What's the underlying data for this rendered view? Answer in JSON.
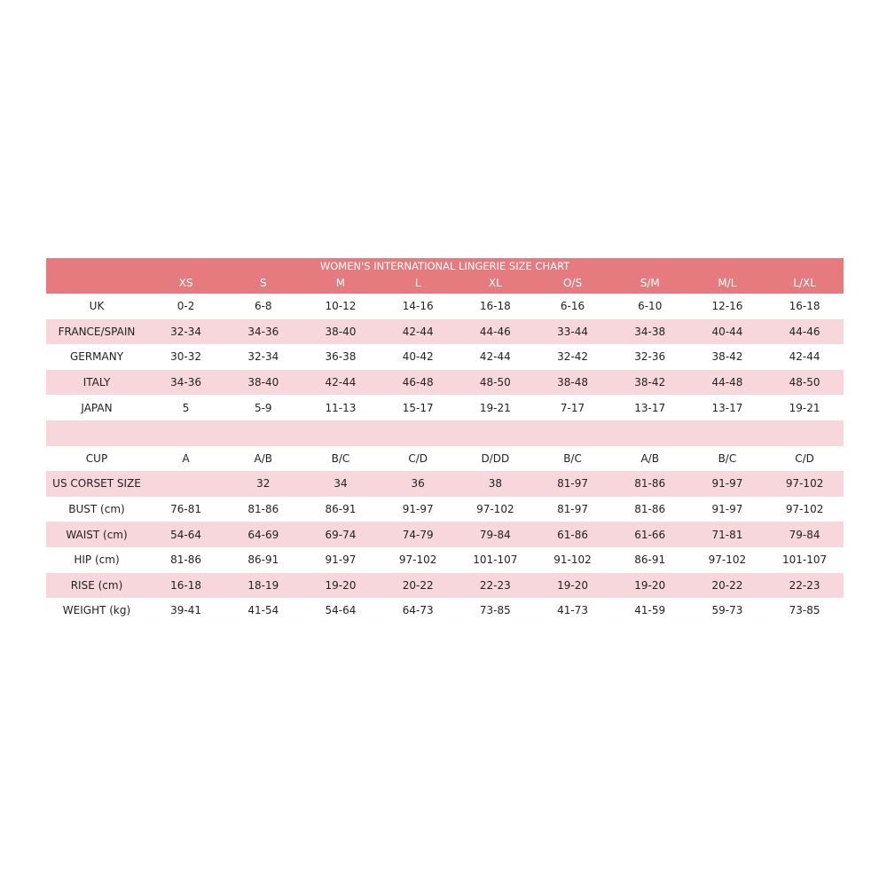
{
  "title": "WOMEN'S INTERNATIONAL LINGERIE SIZE CHART",
  "colors": {
    "header": "#e57b7f",
    "stripe": "#f7d7dc"
  },
  "sizes": [
    "XS",
    "S",
    "M",
    "L",
    "XL",
    "O/S",
    "S/M",
    "M/L",
    "L/XL"
  ],
  "rows": [
    {
      "label": "UK",
      "values": [
        "0-2",
        "6-8",
        "10-12",
        "14-16",
        "16-18",
        "6-16",
        "6-10",
        "12-16",
        "16-18"
      ]
    },
    {
      "label": "FRANCE/SPAIN",
      "values": [
        "32-34",
        "34-36",
        "38-40",
        "42-44",
        "44-46",
        "33-44",
        "34-38",
        "40-44",
        "44-46"
      ]
    },
    {
      "label": "GERMANY",
      "values": [
        "30-32",
        "32-34",
        "36-38",
        "40-42",
        "42-44",
        "32-42",
        "32-36",
        "38-42",
        "42-44"
      ]
    },
    {
      "label": "ITALY",
      "values": [
        "34-36",
        "38-40",
        "42-44",
        "46-48",
        "48-50",
        "38-48",
        "38-42",
        "44-48",
        "48-50"
      ]
    },
    {
      "label": "JAPAN",
      "values": [
        "5",
        "5-9",
        "11-13",
        "15-17",
        "19-21",
        "7-17",
        "13-17",
        "13-17",
        "19-21"
      ]
    },
    {
      "label": "",
      "values": [
        "",
        "",
        "",
        "",
        "",
        "",
        "",
        "",
        ""
      ]
    },
    {
      "label": "CUP",
      "values": [
        "A",
        "A/B",
        "B/C",
        "C/D",
        "D/DD",
        "B/C",
        "A/B",
        "B/C",
        "C/D"
      ]
    },
    {
      "label": "US CORSET SIZE",
      "values": [
        "",
        "32",
        "34",
        "36",
        "38",
        "81-97",
        "81-86",
        "91-97",
        "97-102"
      ]
    },
    {
      "label": "BUST (cm)",
      "values": [
        "76-81",
        "81-86",
        "86-91",
        "91-97",
        "97-102",
        "81-97",
        "81-86",
        "91-97",
        "97-102"
      ]
    },
    {
      "label": "WAIST (cm)",
      "values": [
        "54-64",
        "64-69",
        "69-74",
        "74-79",
        "79-84",
        "61-86",
        "61-66",
        "71-81",
        "79-84"
      ]
    },
    {
      "label": "HIP (cm)",
      "values": [
        "81-86",
        "86-91",
        "91-97",
        "97-102",
        "101-107",
        "91-102",
        "86-91",
        "97-102",
        "101-107"
      ]
    },
    {
      "label": "RISE (cm)",
      "values": [
        "16-18",
        "18-19",
        "19-20",
        "20-22",
        "22-23",
        "19-20",
        "19-20",
        "20-22",
        "22-23"
      ]
    },
    {
      "label": "WEIGHT (kg)",
      "values": [
        "39-41",
        "41-54",
        "54-64",
        "64-73",
        "73-85",
        "41-73",
        "41-59",
        "59-73",
        "73-85"
      ]
    }
  ]
}
